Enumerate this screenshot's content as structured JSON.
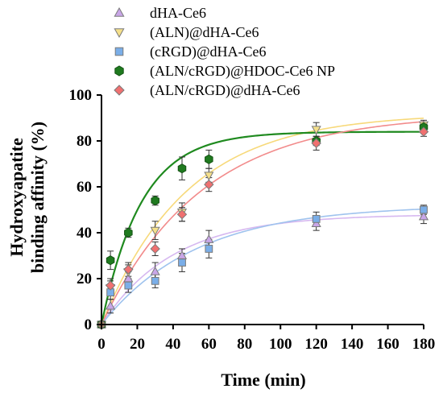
{
  "chart_data": {
    "type": "scatter",
    "xlabel": "Time (min)",
    "ylabel_line1": "Hydroxyapatite",
    "ylabel_line2": "binding affinity (%)",
    "xlim": [
      0,
      180
    ],
    "ylim": [
      0,
      100
    ],
    "xticks": [
      "0",
      "20",
      "40",
      "60",
      "80",
      "100",
      "120",
      "140",
      "160",
      "180"
    ],
    "yticks": [
      "0",
      "20",
      "40",
      "60",
      "80",
      "100"
    ],
    "legend_position": "top",
    "x": [
      0,
      5,
      15,
      30,
      45,
      60,
      120,
      180
    ],
    "series": [
      {
        "name": "dHA-Ce6",
        "marker": "triangle-up",
        "color": "#c9a6e8",
        "values": [
          0,
          8,
          20,
          23,
          30,
          37,
          44,
          47
        ],
        "errors": [
          0,
          3,
          3,
          4,
          3,
          4,
          3,
          3
        ],
        "curve": [
          48,
          0.025
        ]
      },
      {
        "name": "(ALN)@dHA-Ce6",
        "marker": "triangle-down",
        "color": "#f5e08a",
        "values": [
          0,
          16,
          23,
          41,
          49,
          65,
          85,
          87
        ],
        "errors": [
          0,
          3,
          3,
          4,
          4,
          3,
          3,
          2
        ],
        "curve": [
          92,
          0.021
        ]
      },
      {
        "name": "(cRGD)@dHA-Ce6",
        "marker": "square",
        "color": "#7aaee8",
        "values": [
          0,
          14,
          17,
          19,
          27,
          33,
          46,
          50
        ],
        "errors": [
          0,
          3,
          3,
          3,
          4,
          4,
          3,
          2
        ],
        "curve": [
          52,
          0.019
        ]
      },
      {
        "name": "(ALN/cRGD)@HDOC-Ce6 NP",
        "marker": "hexagon",
        "color": "#1f7a1f",
        "values": [
          0,
          28,
          40,
          54,
          68,
          72,
          80,
          86
        ],
        "errors": [
          0,
          4,
          2,
          2,
          5,
          4,
          2,
          2
        ],
        "curve": [
          84,
          0.045
        ]
      },
      {
        "name": "(ALN/cRGD)@dHA-Ce6",
        "marker": "diamond",
        "color": "#f07070",
        "values": [
          0,
          17,
          24,
          33,
          48,
          61,
          79,
          84
        ],
        "errors": [
          0,
          3,
          3,
          3,
          3,
          3,
          3,
          2
        ],
        "curve": [
          92,
          0.018
        ]
      }
    ],
    "marker_edge": "#7a7a7a",
    "overlap_color": "#b08968",
    "curve_colors": [
      "#d6b8f0",
      "#f7d97a",
      "#9fc3ee",
      "#1f8a1f",
      "#f28b8b"
    ]
  }
}
